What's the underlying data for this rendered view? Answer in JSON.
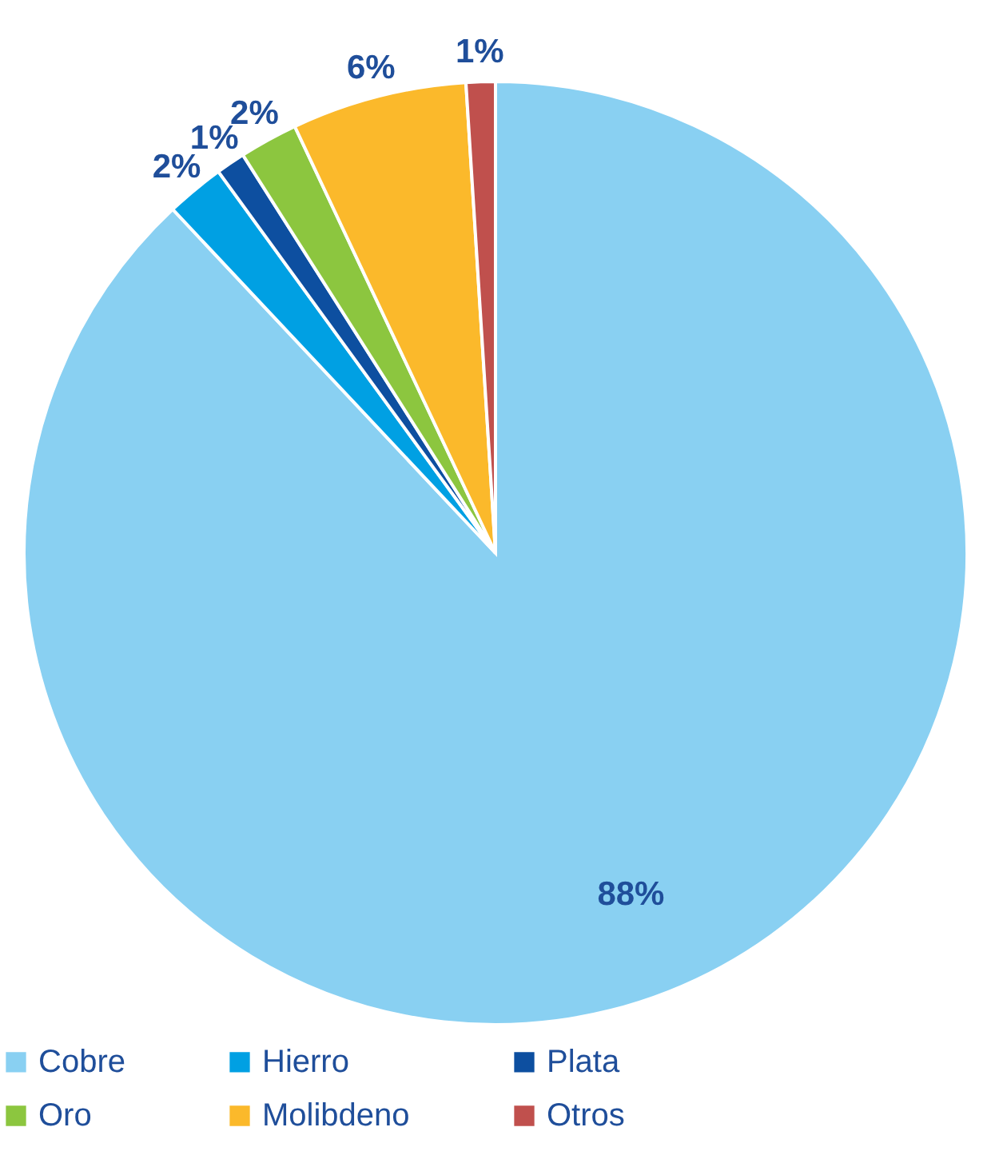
{
  "chart_data": {
    "type": "pie",
    "categories": [
      "Cobre",
      "Hierro",
      "Plata",
      "Oro",
      "Molibdeno",
      "Otros"
    ],
    "values": [
      88,
      2,
      1,
      2,
      6,
      1
    ],
    "value_labels": [
      "88%",
      "2%",
      "1%",
      "2%",
      "6%",
      "1%"
    ],
    "colors": [
      "#89d0f2",
      "#00a0e3",
      "#0d4fa0",
      "#8cc63f",
      "#fbb92b",
      "#c0504d"
    ],
    "legend": "bottom"
  }
}
